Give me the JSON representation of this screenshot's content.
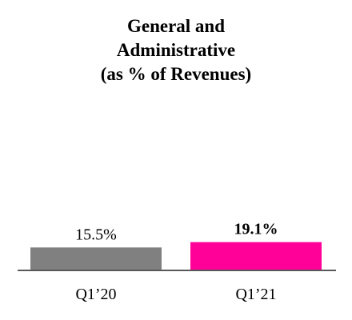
{
  "chart_data": {
    "type": "bar",
    "title_lines": [
      "General and",
      "Administrative",
      "(as % of Revenues)"
    ],
    "categories": [
      "Q1’20",
      "Q1’21"
    ],
    "values": [
      15.5,
      19.1
    ],
    "value_labels": [
      "15.5%",
      "19.1%"
    ],
    "value_label_bold": [
      false,
      true
    ],
    "colors": [
      "#808080",
      "#FF0099"
    ],
    "axis_color": "#595959",
    "xlabel": "",
    "ylabel": "",
    "grid": false,
    "legend": "none"
  }
}
